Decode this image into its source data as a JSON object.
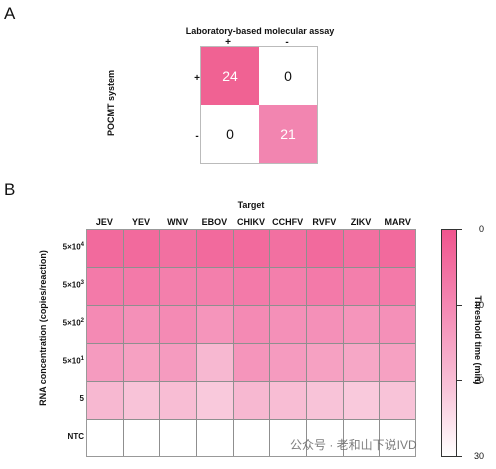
{
  "panel_a": {
    "letter": "A",
    "title": "Laboratory-based molecular assay",
    "col_labels": [
      "+",
      "-"
    ],
    "row_labels": [
      "+",
      "-"
    ],
    "ylabel": "POCMT system",
    "cells": [
      [
        {
          "value": "24",
          "color": "#f06293",
          "text_color": "#ffffff"
        },
        {
          "value": "0",
          "color": "#ffffff",
          "text_color": "#111111"
        }
      ],
      [
        {
          "value": "0",
          "color": "#ffffff",
          "text_color": "#111111"
        },
        {
          "value": "21",
          "color": "#f285b0",
          "text_color": "#ffffff"
        }
      ]
    ]
  },
  "panel_b": {
    "letter": "B"
  },
  "chart_data": {
    "type": "heatmap",
    "title": "Target",
    "xlabel": "Target",
    "ylabel": "RNA concentration (copies/reaction)",
    "columns": [
      "JEV",
      "YEV",
      "WNV",
      "EBOV",
      "CHIKV",
      "CCHFV",
      "RVFV",
      "ZIKV",
      "MARV"
    ],
    "rows": [
      {
        "label_base": "5×10",
        "label_exp": "4"
      },
      {
        "label_base": "5×10",
        "label_exp": "3"
      },
      {
        "label_base": "5×10",
        "label_exp": "2"
      },
      {
        "label_base": "5×10",
        "label_exp": "1"
      },
      {
        "label_base": "5",
        "label_exp": ""
      },
      {
        "label_base": "NTC",
        "label_exp": ""
      }
    ],
    "values": [
      [
        4,
        4,
        5,
        4,
        4,
        5,
        4,
        5,
        4
      ],
      [
        7,
        7,
        8,
        8,
        7,
        8,
        7,
        8,
        7
      ],
      [
        10,
        11,
        10,
        12,
        10,
        11,
        11,
        12,
        11
      ],
      [
        13,
        14,
        13,
        18,
        12,
        13,
        14,
        15,
        14
      ],
      [
        18,
        20,
        19,
        21,
        18,
        19,
        20,
        21,
        20
      ],
      [
        30,
        30,
        30,
        30,
        30,
        30,
        30,
        30,
        30
      ]
    ],
    "colorbar": {
      "label": "Threshold time (min)",
      "range": [
        0,
        30
      ],
      "ticks": [
        0,
        10,
        20,
        30
      ],
      "colors": [
        "#f0558e",
        "#f48ab4",
        "#f8c3d8",
        "#ffffff"
      ]
    }
  },
  "watermark": "公众号 · 老和山下说IVD"
}
